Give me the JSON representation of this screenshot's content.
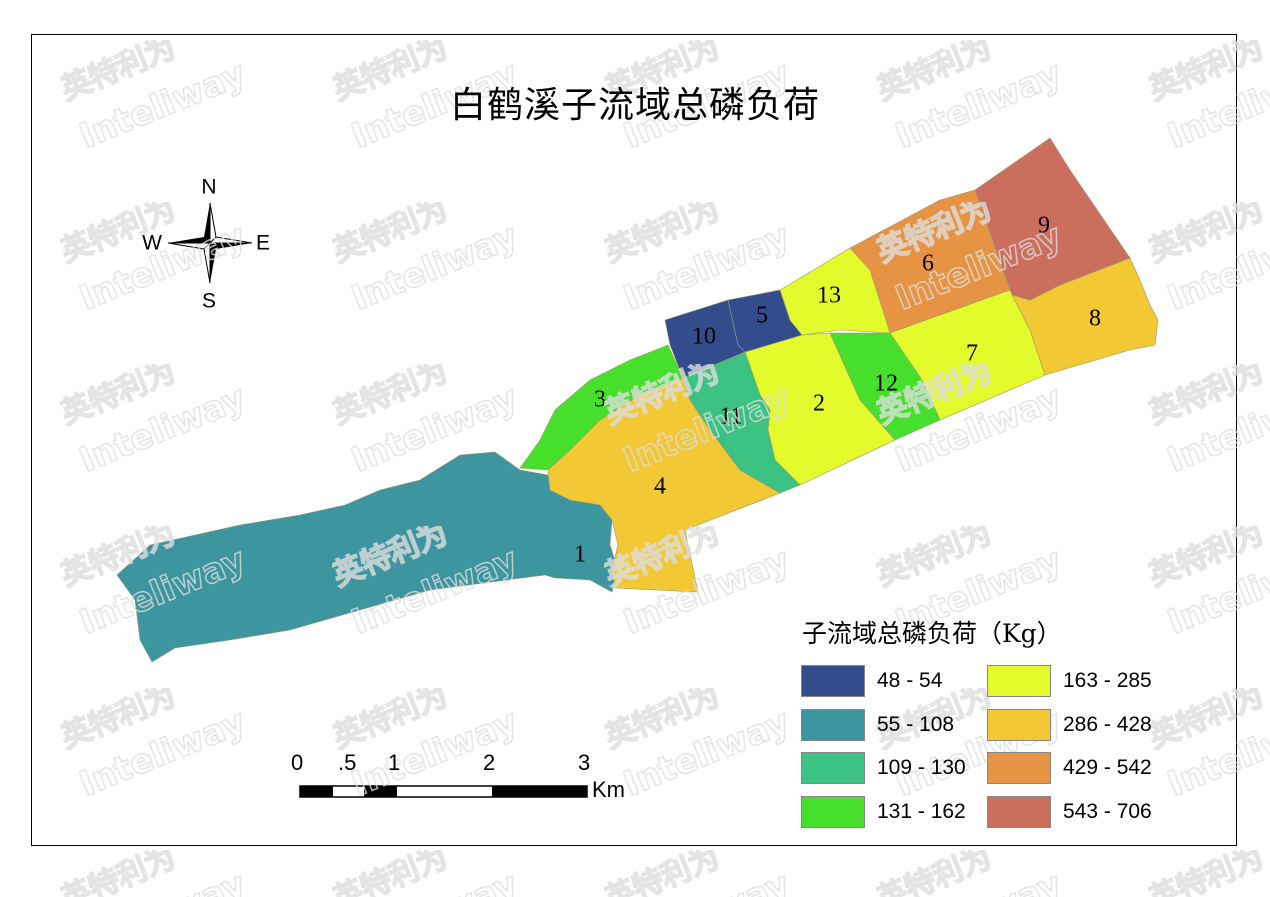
{
  "title": "白鹤溪子流域总磷负荷",
  "watermark": [
    "英特利为",
    "Inteliway"
  ],
  "compass": {
    "n": "N",
    "s": "S",
    "e": "E",
    "w": "W"
  },
  "scale_bar": {
    "ticks": [
      "0",
      ".5",
      "1",
      "2",
      "3"
    ],
    "unit": "Km"
  },
  "legend": {
    "title": "子流域总磷负荷（Kg）",
    "classes": [
      {
        "range": "48 - 54",
        "color": "#334d8c"
      },
      {
        "range": "55 - 108",
        "color": "#3d95a0"
      },
      {
        "range": "109 - 130",
        "color": "#3cc283"
      },
      {
        "range": "131 - 162",
        "color": "#46e02c"
      },
      {
        "range": "163 - 285",
        "color": "#e3fb2c"
      },
      {
        "range": "286 - 428",
        "color": "#f2c834"
      },
      {
        "range": "429 - 542",
        "color": "#e69444"
      },
      {
        "range": "543 - 706",
        "color": "#cb6e5e"
      }
    ]
  },
  "subbasins": [
    {
      "id": "1",
      "class": 1
    },
    {
      "id": "2",
      "class": 4
    },
    {
      "id": "3",
      "class": 3
    },
    {
      "id": "4",
      "class": 5
    },
    {
      "id": "5",
      "class": 0
    },
    {
      "id": "6",
      "class": 6
    },
    {
      "id": "7",
      "class": 4
    },
    {
      "id": "8",
      "class": 5
    },
    {
      "id": "9",
      "class": 7
    },
    {
      "id": "10",
      "class": 0
    },
    {
      "id": "11",
      "class": 2
    },
    {
      "id": "12",
      "class": 3
    },
    {
      "id": "13",
      "class": 4
    }
  ]
}
